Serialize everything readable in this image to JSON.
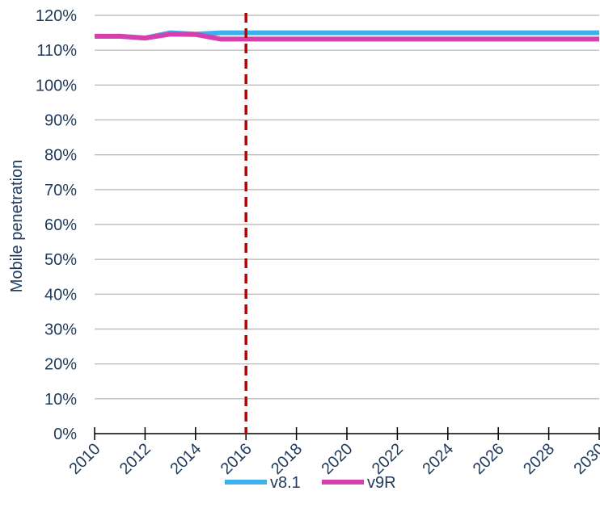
{
  "chart_data": {
    "type": "line",
    "title": "",
    "xlabel": "",
    "ylabel": "Mobile penetration",
    "x": [
      2010,
      2011,
      2012,
      2013,
      2014,
      2015,
      2016,
      2017,
      2018,
      2019,
      2020,
      2021,
      2022,
      2023,
      2024,
      2025,
      2026,
      2027,
      2028,
      2029,
      2030
    ],
    "x_ticks": [
      "2010",
      "2012",
      "2014",
      "2016",
      "2018",
      "2020",
      "2022",
      "2024",
      "2026",
      "2028",
      "2030"
    ],
    "y_ticks": [
      "0%",
      "10%",
      "20%",
      "30%",
      "40%",
      "50%",
      "60%",
      "70%",
      "80%",
      "90%",
      "100%",
      "110%",
      "120%"
    ],
    "xlim": [
      2010,
      2030
    ],
    "ylim": [
      0,
      120
    ],
    "grid": "horizontal",
    "legend": "bottom",
    "forecast_marker_x": 2016,
    "series": [
      {
        "name": "v8.1",
        "color": "#3eb0f0",
        "values": [
          114.0,
          114.0,
          113.5,
          115.0,
          114.6,
          115.0,
          115.0,
          115.0,
          115.0,
          115.0,
          115.0,
          115.0,
          115.0,
          115.0,
          115.0,
          115.0,
          115.0,
          115.0,
          115.0,
          115.0,
          115.0
        ]
      },
      {
        "name": "v9R",
        "color": "#d63fae",
        "values": [
          114.0,
          114.0,
          113.5,
          114.6,
          114.5,
          113.2,
          113.2,
          113.2,
          113.2,
          113.2,
          113.2,
          113.2,
          113.2,
          113.2,
          113.2,
          113.2,
          113.2,
          113.2,
          113.2,
          113.2,
          113.2
        ]
      }
    ],
    "colors": {
      "grid": "#bfbfbf",
      "axis": "#000000",
      "text": "#1f3a5a",
      "marker": "#c00000"
    }
  }
}
